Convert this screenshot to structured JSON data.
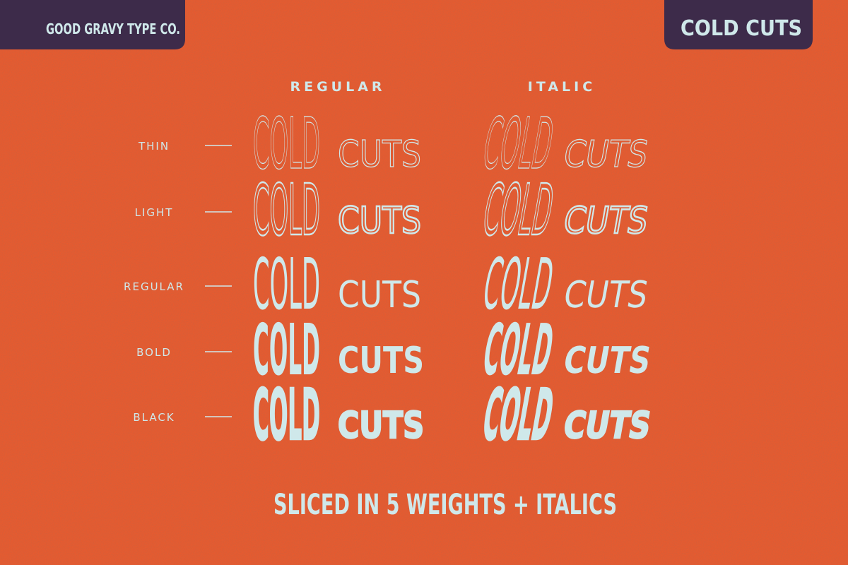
{
  "header": {
    "left": "GOOD GRAVY TYPE CO.",
    "right": "COLD CUTS"
  },
  "columns": [
    "REGULAR",
    "ITALIC"
  ],
  "rows": [
    {
      "label": "THIN",
      "regular": {
        "big": "COLD",
        "small": "CUTS"
      },
      "italic": {
        "big": "COLD",
        "small": "CUTS"
      }
    },
    {
      "label": "LIGHT",
      "regular": {
        "big": "COLD",
        "small": "CUTS"
      },
      "italic": {
        "big": "COLD",
        "small": "CUTS"
      }
    },
    {
      "label": "REGULAR",
      "regular": {
        "big": "COLD",
        "small": "CUTS"
      },
      "italic": {
        "big": "COLD",
        "small": "CUTS"
      }
    },
    {
      "label": "BOLD",
      "regular": {
        "big": "COLD",
        "small": "CUTS"
      },
      "italic": {
        "big": "COLD",
        "small": "CUTS"
      }
    },
    {
      "label": "BLACK",
      "regular": {
        "big": "COLD",
        "small": "CUTS"
      },
      "italic": {
        "big": "COLD",
        "small": "CUTS"
      }
    }
  ],
  "footer": "SLICED IN 5 WEIGHTS + ITALICS"
}
